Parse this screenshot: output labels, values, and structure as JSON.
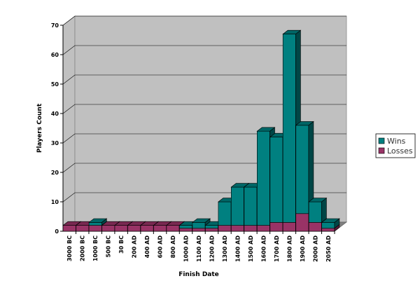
{
  "chart_data": {
    "type": "bar",
    "stacked": true,
    "three_d": true,
    "title": "",
    "xlabel": "Finish Date",
    "ylabel": "Players Count",
    "ylim": [
      0,
      70
    ],
    "yticks": [
      0,
      10,
      20,
      30,
      40,
      50,
      60,
      70
    ],
    "grid": true,
    "legend": "right",
    "categories": [
      "3000 BC",
      "2000 BC",
      "1000 BC",
      "500 BC",
      "30 BC",
      "200 AD",
      "400 AD",
      "600 AD",
      "800 AD",
      "1000 AD",
      "1100 AD",
      "1200 AD",
      "1300 AD",
      "1400 AD",
      "1500 AD",
      "1600 AD",
      "1700 AD",
      "1800 AD",
      "1900 AD",
      "2000 AD",
      "2050 AD"
    ],
    "series": [
      {
        "name": "Losses",
        "color": "#993366",
        "values": [
          2,
          2,
          2,
          2,
          2,
          2,
          2,
          2,
          2,
          1,
          1,
          1,
          2,
          2,
          2,
          2,
          3,
          3,
          6,
          3,
          1
        ]
      },
      {
        "name": "Wins",
        "color": "#008080",
        "values": [
          0,
          0,
          1,
          0,
          0,
          0,
          0,
          0,
          0,
          1,
          2,
          1,
          8,
          13,
          13,
          32,
          29,
          64,
          30,
          7,
          2
        ]
      }
    ],
    "legend_order": [
      "Wins",
      "Losses"
    ]
  }
}
